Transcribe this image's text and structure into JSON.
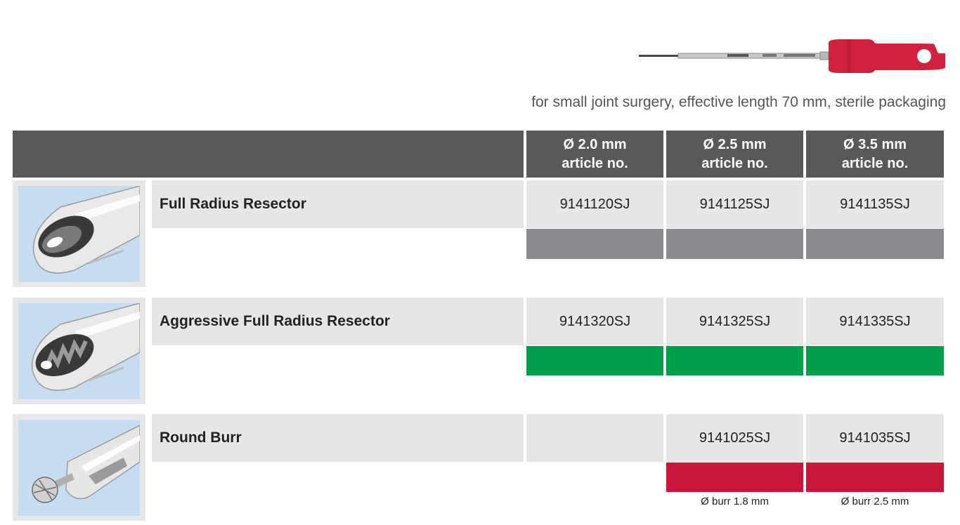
{
  "subtitle": "for small joint surgery, effective length 70 mm, sterile packaging",
  "columns": [
    {
      "size": "Ø 2.0 mm",
      "label": "article no."
    },
    {
      "size": "Ø 2.5 mm",
      "label": "article no."
    },
    {
      "size": "Ø 3.5 mm",
      "label": "article no."
    }
  ],
  "products": [
    {
      "name": "Full Radius Resector",
      "articles": [
        "9141120SJ",
        "9141125SJ",
        "9141135SJ"
      ],
      "band_color": "#8a8b8f",
      "notes": [
        "",
        "",
        ""
      ]
    },
    {
      "name": "Aggressive Full Radius Resector",
      "articles": [
        "9141320SJ",
        "9141325SJ",
        "9141335SJ"
      ],
      "band_color": "#00a04a",
      "notes": [
        "",
        "",
        ""
      ]
    },
    {
      "name": "Round Burr",
      "articles": [
        "",
        "9141025SJ",
        "9141035SJ"
      ],
      "band_color": "#c8173a",
      "notes": [
        "",
        "Ø burr 1.8 mm",
        "Ø burr 2.5 mm"
      ]
    }
  ],
  "colors": {
    "header": "#595959",
    "cell": "#e6e6e6",
    "thumb_bg": "#c5dcf2",
    "handle": "#d0213e"
  },
  "icons": [
    "shaver-instrument-image",
    "full-radius-resector-tip",
    "aggressive-resector-tip",
    "round-burr-tip"
  ]
}
